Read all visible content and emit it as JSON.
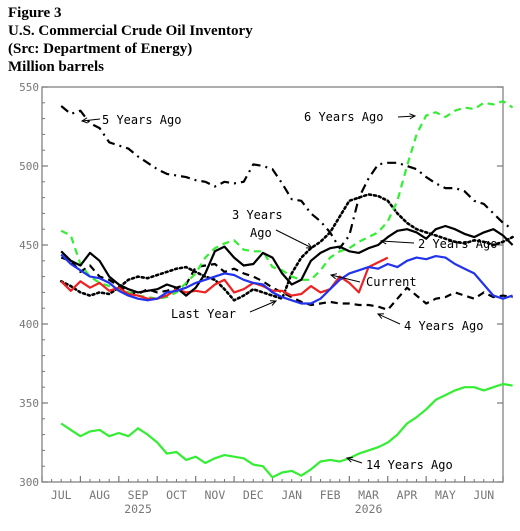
{
  "header": {
    "figure": "Figure 3",
    "title": "U.S. Commercial Crude Oil Inventory",
    "source": "(Src: Department of Energy)",
    "units": "Million barrels"
  },
  "chart_data": {
    "type": "line",
    "ylim": [
      300,
      550
    ],
    "y_ticks": [
      300,
      350,
      400,
      450,
      500,
      550
    ],
    "x_months": [
      "JUL",
      "AUG",
      "SEP",
      "OCT",
      "NOV",
      "DEC",
      "JAN",
      "FEB",
      "MAR",
      "APR",
      "MAY",
      "JUN"
    ],
    "year_labels": [
      {
        "text": "2025",
        "month_index": 2.5
      },
      {
        "text": "2026",
        "month_index": 8.5
      }
    ],
    "grid": false,
    "series": [
      {
        "name": "5 Years Ago",
        "color": "#000000",
        "style": "dashdot",
        "x": [
          0,
          0.25,
          0.5,
          0.75,
          1,
          1.25,
          1.5,
          1.75,
          2,
          2.25,
          2.5,
          2.75,
          3,
          3.25,
          3.5,
          3.75,
          4,
          4.25,
          4.5,
          4.75,
          5,
          5.25,
          5.5,
          5.75,
          6,
          6.25,
          6.5,
          6.75,
          7,
          7.25,
          7.5,
          7.75,
          8,
          8.25,
          8.5,
          8.75,
          9,
          9.25,
          9.5,
          9.75,
          10,
          10.25,
          10.5,
          10.75,
          11,
          11.25,
          11.5,
          11.75
        ],
        "values": [
          538,
          533,
          535,
          527,
          524,
          515,
          513,
          511,
          506,
          502,
          498,
          495,
          494,
          493,
          491,
          490,
          487,
          490,
          489,
          490,
          501,
          500,
          498,
          489,
          479,
          478,
          470,
          465,
          458,
          448,
          456,
          480,
          492,
          501,
          502,
          502,
          500,
          498,
          493,
          489,
          486,
          486,
          484,
          478,
          476,
          470,
          464,
          460
        ]
      },
      {
        "name": "6 Years Ago",
        "color": "#33ee33",
        "style": "dashed",
        "x": [
          0,
          0.25,
          0.5,
          0.75,
          1,
          1.25,
          1.5,
          1.75,
          2,
          2.25,
          2.5,
          2.75,
          3,
          3.25,
          3.5,
          3.75,
          4,
          4.25,
          4.5,
          4.75,
          5,
          5.25,
          5.5,
          5.75,
          6,
          6.25,
          6.5,
          6.75,
          7,
          7.25,
          7.5,
          7.75,
          8,
          8.25,
          8.5,
          8.75,
          9,
          9.25,
          9.5,
          9.75,
          10,
          10.25,
          10.5,
          10.75,
          11,
          11.25,
          11.5,
          11.75
        ],
        "values": [
          459,
          456,
          438,
          430,
          426,
          424,
          422,
          420,
          418,
          417,
          416,
          417,
          420,
          426,
          432,
          442,
          448,
          451,
          453,
          447,
          446,
          446,
          436,
          434,
          430,
          428,
          428,
          434,
          442,
          446,
          448,
          452,
          455,
          458,
          465,
          478,
          500,
          520,
          532,
          534,
          531,
          535,
          537,
          536,
          540,
          539,
          541,
          537
        ]
      },
      {
        "name": "3 Years Ago",
        "color": "#000000",
        "style": "dotted",
        "x": [
          0,
          0.25,
          0.5,
          0.75,
          1,
          1.25,
          1.5,
          1.75,
          2,
          2.25,
          2.5,
          2.75,
          3,
          3.25,
          3.5,
          3.75,
          4,
          4.25,
          4.5,
          4.75,
          5,
          5.25,
          5.5,
          5.75,
          6,
          6.25,
          6.5,
          6.75,
          7,
          7.25,
          7.5,
          7.75,
          8,
          8.25,
          8.5,
          8.75,
          9,
          9.25,
          9.5,
          9.75,
          10,
          10.25,
          10.5,
          10.75,
          11,
          11.25,
          11.5,
          11.75
        ],
        "values": [
          427,
          424,
          420,
          418,
          420,
          419,
          423,
          428,
          430,
          429,
          431,
          433,
          435,
          436,
          433,
          430,
          428,
          422,
          415,
          418,
          422,
          420,
          418,
          416,
          432,
          442,
          448,
          452,
          458,
          468,
          478,
          480,
          482,
          481,
          478,
          470,
          464,
          460,
          458,
          456,
          454,
          452,
          451,
          453,
          452,
          450,
          452,
          455
        ]
      },
      {
        "name": "2 Years Ago",
        "color": "#000000",
        "style": "solid",
        "x": [
          0,
          0.25,
          0.5,
          0.75,
          1,
          1.25,
          1.5,
          1.75,
          2,
          2.25,
          2.5,
          2.75,
          3,
          3.25,
          3.5,
          3.75,
          4,
          4.25,
          4.5,
          4.75,
          5,
          5.25,
          5.5,
          5.75,
          6,
          6.25,
          6.5,
          6.75,
          7,
          7.25,
          7.5,
          7.75,
          8,
          8.25,
          8.5,
          8.75,
          9,
          9.25,
          9.5,
          9.75,
          10,
          10.25,
          10.5,
          10.75,
          11,
          11.25,
          11.5,
          11.75
        ],
        "values": [
          446,
          440,
          437,
          445,
          440,
          430,
          425,
          422,
          420,
          421,
          422,
          425,
          423,
          418,
          423,
          432,
          446,
          449,
          442,
          437,
          438,
          445,
          442,
          432,
          425,
          428,
          440,
          445,
          448,
          449,
          446,
          445,
          448,
          450,
          455,
          459,
          460,
          458,
          454,
          460,
          462,
          460,
          457,
          455,
          458,
          460,
          456,
          450
        ]
      },
      {
        "name": "Current",
        "color": "#2233ee",
        "style": "solid",
        "x": [
          0,
          0.25,
          0.5,
          0.75,
          1,
          1.25,
          1.5,
          1.75,
          2,
          2.25,
          2.5,
          2.75,
          3,
          3.25,
          3.5,
          3.75,
          4,
          4.25,
          4.5,
          4.75,
          5,
          5.25,
          5.5,
          5.75,
          6,
          6.25,
          6.5,
          6.75,
          7,
          7.25,
          7.5,
          7.75,
          8,
          8.25,
          8.5,
          8.75,
          9,
          9.25,
          9.5,
          9.75,
          10,
          10.25,
          10.5,
          10.75,
          11,
          11.25,
          11.5,
          11.75
        ],
        "values": [
          444,
          438,
          434,
          430,
          429,
          426,
          421,
          418,
          416,
          415,
          416,
          420,
          421,
          423,
          426,
          428,
          430,
          432,
          431,
          428,
          426,
          425,
          420,
          417,
          415,
          413,
          413,
          416,
          422,
          428,
          432,
          434,
          436,
          435,
          438,
          436,
          440,
          442,
          441,
          443,
          442,
          438,
          435,
          432,
          425,
          418,
          416,
          418
        ]
      },
      {
        "name": "Last Year",
        "color": "#ee2222",
        "style": "solid",
        "x": [
          0,
          0.25,
          0.5,
          0.75,
          1,
          1.25,
          1.5,
          1.75,
          2,
          2.25,
          2.5,
          2.75,
          3,
          3.25,
          3.5,
          3.75,
          4,
          4.25,
          4.5,
          4.75,
          5,
          5.25,
          5.5,
          5.75,
          6,
          6.25,
          6.5,
          6.75,
          7,
          7.25,
          7.5,
          7.75,
          8,
          8.25,
          8.5
        ],
        "values": [
          427,
          421,
          427,
          423,
          426,
          421,
          423,
          419,
          418,
          416,
          416,
          418,
          422,
          420,
          421,
          420,
          425,
          428,
          420,
          422,
          426,
          424,
          421,
          421,
          418,
          419,
          424,
          420,
          422,
          430,
          426,
          420,
          436,
          439,
          442
        ]
      },
      {
        "name": "4 Years Ago",
        "color": "#000000",
        "style": "dashed",
        "x": [
          0,
          0.25,
          0.5,
          0.75,
          1,
          1.25,
          1.5,
          1.75,
          2,
          2.25,
          2.5,
          2.75,
          3,
          3.25,
          3.5,
          3.75,
          4,
          4.25,
          4.5,
          4.75,
          5,
          5.25,
          5.5,
          5.75,
          6,
          6.25,
          6.5,
          6.75,
          7,
          7.25,
          7.5,
          7.75,
          8,
          8.25,
          8.5,
          8.75,
          9,
          9.25,
          9.5,
          9.75,
          10,
          10.25,
          10.5,
          10.75,
          11,
          11.25,
          11.5,
          11.75
        ],
        "values": [
          442,
          440,
          433,
          437,
          430,
          428,
          424,
          420,
          419,
          422,
          420,
          421,
          423,
          425,
          436,
          437,
          438,
          433,
          435,
          432,
          430,
          427,
          423,
          420,
          417,
          414,
          412,
          413,
          414,
          413,
          413,
          412,
          412,
          411,
          409,
          416,
          423,
          418,
          413,
          416,
          417,
          420,
          418,
          416,
          420,
          417,
          418,
          417
        ]
      },
      {
        "name": "14 Years Ago",
        "color": "#33ee33",
        "style": "solid",
        "x": [
          0,
          0.25,
          0.5,
          0.75,
          1,
          1.25,
          1.5,
          1.75,
          2,
          2.25,
          2.5,
          2.75,
          3,
          3.25,
          3.5,
          3.75,
          4,
          4.25,
          4.5,
          4.75,
          5,
          5.25,
          5.5,
          5.75,
          6,
          6.25,
          6.5,
          6.75,
          7,
          7.25,
          7.5,
          7.75,
          8,
          8.25,
          8.5,
          8.75,
          9,
          9.25,
          9.5,
          9.75,
          10,
          10.25,
          10.5,
          10.75,
          11,
          11.25,
          11.5,
          11.75
        ],
        "values": [
          337,
          333,
          329,
          332,
          333,
          329,
          331,
          329,
          334,
          330,
          325,
          318,
          319,
          314,
          316,
          312,
          315,
          317,
          316,
          315,
          311,
          310,
          303,
          306,
          307,
          304,
          308,
          313,
          314,
          313,
          315,
          318,
          320,
          322,
          325,
          330,
          337,
          341,
          346,
          352,
          355,
          358,
          360,
          360,
          358,
          360,
          362,
          361
        ]
      }
    ],
    "labels": [
      {
        "text": "5 Years Ago",
        "series": "5 Years Ago"
      },
      {
        "text": "6 Years Ago",
        "series": "6 Years Ago"
      },
      {
        "text": "3 Years",
        "series": "3 Years Ago"
      },
      {
        "text": "Ago",
        "series": "3 Years Ago"
      },
      {
        "text": "2 Years Ago",
        "series": "2 Years Ago"
      },
      {
        "text": "Current",
        "series": "Current"
      },
      {
        "text": "Last Year",
        "series": "Last Year"
      },
      {
        "text": "4 Years Ago",
        "series": "4 Years Ago"
      },
      {
        "text": "14 Years Ago",
        "series": "14 Years Ago"
      }
    ]
  }
}
